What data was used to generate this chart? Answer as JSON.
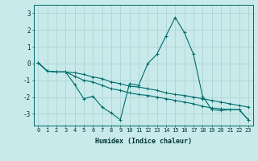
{
  "background_color": "#c8eaea",
  "grid_color": "#b0d8d8",
  "line_color": "#006b6b",
  "marker_color": "#006b6b",
  "xlabel": "Humidex (Indice chaleur)",
  "xlim": [
    -0.5,
    23.5
  ],
  "ylim": [
    -3.7,
    3.5
  ],
  "yticks": [
    -3,
    -2,
    -1,
    0,
    1,
    2,
    3
  ],
  "xticks": [
    0,
    1,
    2,
    3,
    4,
    5,
    6,
    7,
    8,
    9,
    10,
    11,
    12,
    13,
    14,
    15,
    16,
    17,
    18,
    19,
    20,
    21,
    22,
    23
  ],
  "series": [
    [
      0.05,
      -0.45,
      -0.5,
      -0.5,
      -1.25,
      -2.1,
      -1.95,
      -2.6,
      -2.95,
      -3.35,
      -1.2,
      -1.3,
      0.0,
      0.55,
      1.65,
      2.75,
      1.85,
      0.55,
      -1.95,
      -2.75,
      -2.8,
      -2.75,
      -2.75,
      -3.35
    ],
    [
      0.05,
      -0.45,
      -0.5,
      -0.5,
      -0.55,
      -0.65,
      -0.8,
      -0.9,
      -1.1,
      -1.2,
      -1.35,
      -1.4,
      -1.5,
      -1.6,
      -1.75,
      -1.85,
      -1.9,
      -2.0,
      -2.1,
      -2.2,
      -2.3,
      -2.4,
      -2.5,
      -2.6
    ],
    [
      0.05,
      -0.45,
      -0.5,
      -0.5,
      -0.75,
      -1.0,
      -1.1,
      -1.3,
      -1.5,
      -1.6,
      -1.75,
      -1.85,
      -1.9,
      -2.0,
      -2.1,
      -2.2,
      -2.3,
      -2.4,
      -2.55,
      -2.65,
      -2.7,
      -2.75,
      -2.75,
      -3.35
    ]
  ]
}
